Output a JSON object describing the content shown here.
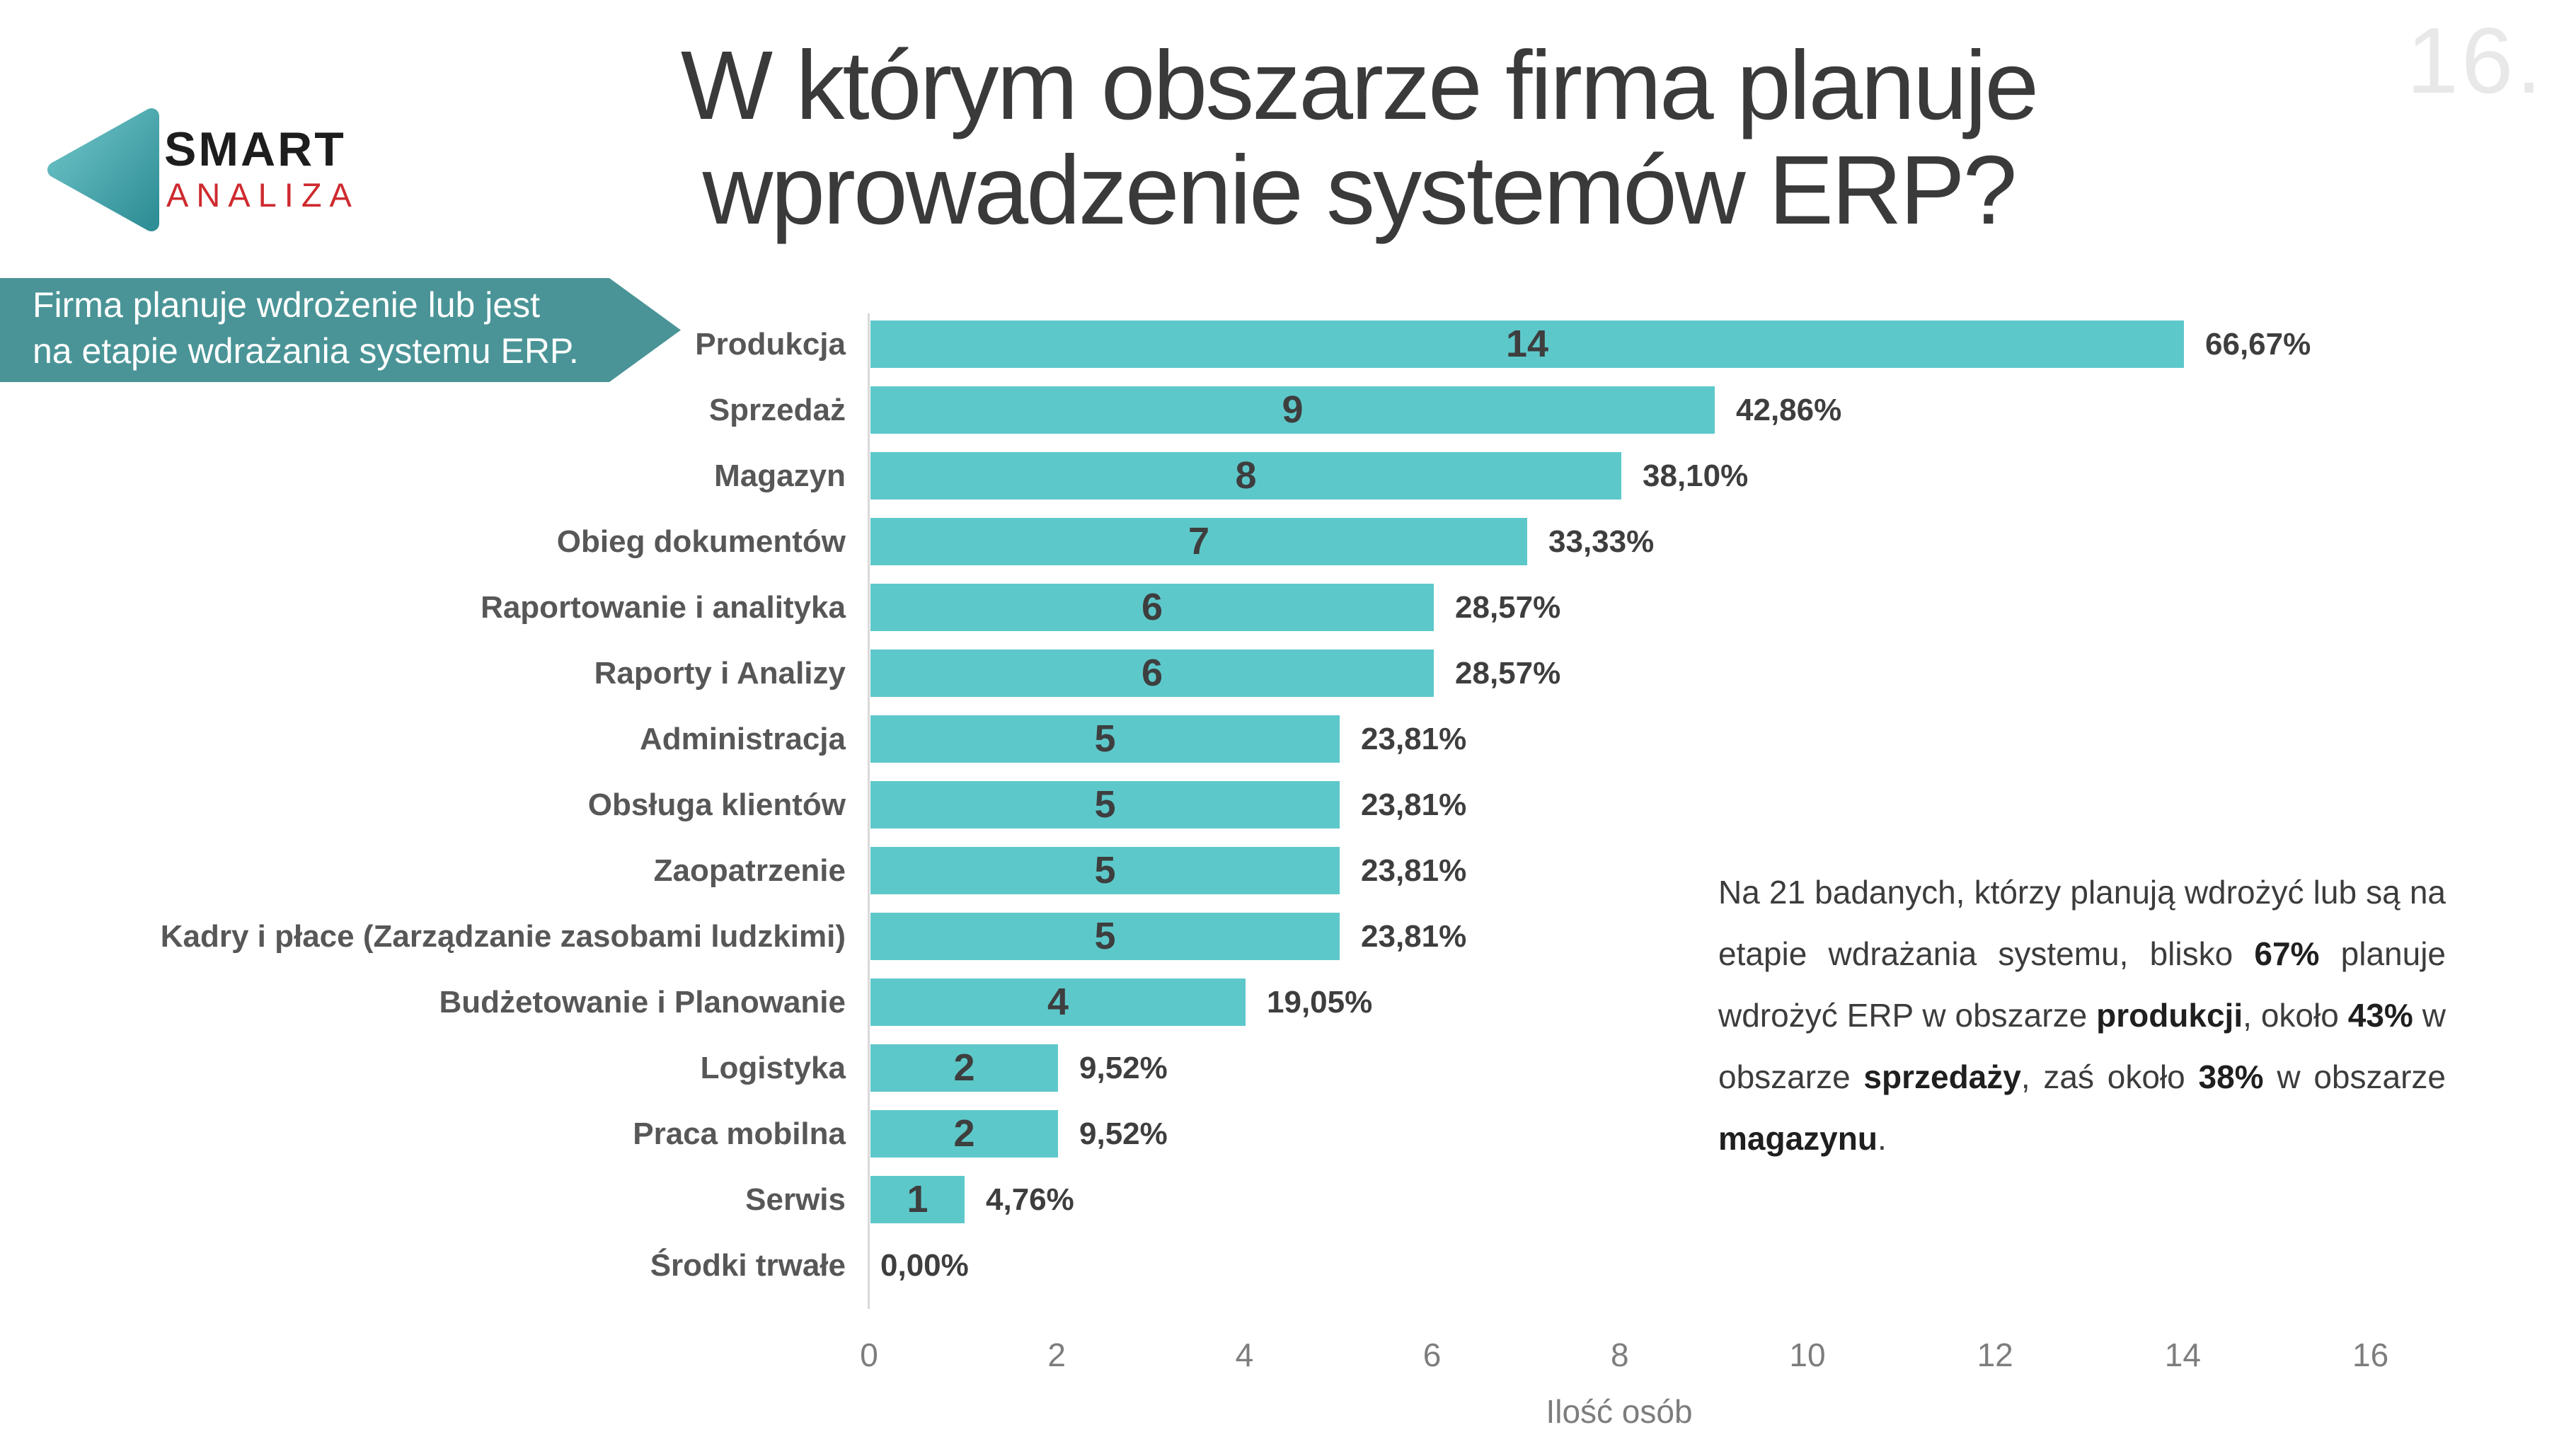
{
  "slide": {
    "page_number": "16.",
    "title_lines": [
      "W którym obszarze firma planuje",
      "wprowadzenie systemów ERP?"
    ]
  },
  "logo": {
    "brand_top": "SMART",
    "brand_bottom": "ANALIZA"
  },
  "callout": {
    "lines": [
      "Firma planuje wdrożenie lub jest",
      "na etapie wdrażania systemu ERP."
    ]
  },
  "chart_data": {
    "type": "bar",
    "orientation": "horizontal",
    "title": "",
    "categories": [
      "Produkcja",
      "Sprzedaż",
      "Magazyn",
      "Obieg dokumentów",
      "Raportowanie i analityka",
      "Raporty i Analizy",
      "Administracja",
      "Obsługa klientów",
      "Zaopatrzenie",
      "Kadry i płace (Zarządzanie zasobami ludzkimi)",
      "Budżetowanie i Planowanie",
      "Logistyka",
      "Praca mobilna",
      "Serwis",
      "Środki trwałe"
    ],
    "values": [
      14,
      9,
      8,
      7,
      6,
      6,
      5,
      5,
      5,
      5,
      4,
      2,
      2,
      1,
      0
    ],
    "percent_labels": [
      "66,67%",
      "42,86%",
      "38,10%",
      "33,33%",
      "28,57%",
      "28,57%",
      "23,81%",
      "23,81%",
      "23,81%",
      "23,81%",
      "19,05%",
      "9,52%",
      "9,52%",
      "4,76%",
      "0,00%"
    ],
    "xlabel": "Ilość osób",
    "x_ticks": [
      0,
      2,
      4,
      6,
      8,
      10,
      12,
      14,
      16
    ],
    "xlim": [
      0,
      16
    ],
    "grid": false,
    "legend": false,
    "bar_color": "#5dc8ca",
    "value_label_position": "inside-center",
    "percent_label_position": "right-of-bar"
  },
  "annotation": {
    "segments": [
      {
        "text": "Na 21 badanych, którzy planują wdrożyć lub są na etapie wdrażania systemu, blisko ",
        "bold": false
      },
      {
        "text": "67%",
        "bold": true
      },
      {
        "text": " planuje wdrożyć ERP w obszarze ",
        "bold": false
      },
      {
        "text": "produkcji",
        "bold": true
      },
      {
        "text": ", około ",
        "bold": false
      },
      {
        "text": "43%",
        "bold": true
      },
      {
        "text": " w obszarze ",
        "bold": false
      },
      {
        "text": "sprzedaży",
        "bold": true
      },
      {
        "text": ", zaś około ",
        "bold": false
      },
      {
        "text": "38%",
        "bold": true
      },
      {
        "text": " w obszarze ",
        "bold": false
      },
      {
        "text": "magazynu",
        "bold": true
      },
      {
        "text": ".",
        "bold": false
      }
    ]
  },
  "colors": {
    "bar": "#5dc8ca",
    "banner": "#4a9497",
    "brand_red": "#ce2a2f",
    "logo_gradient_start": "#6ec5c8",
    "logo_gradient_end": "#2f8e96"
  }
}
